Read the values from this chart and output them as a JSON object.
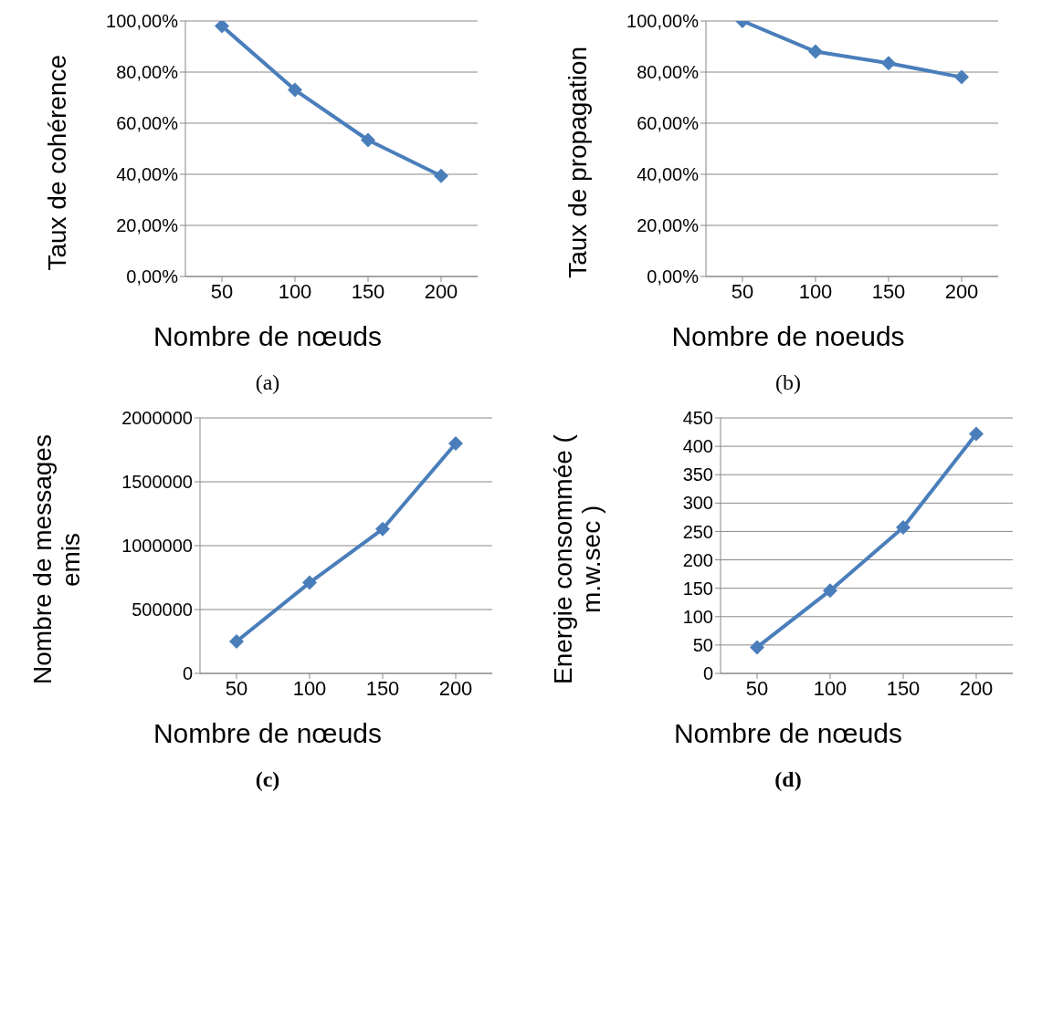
{
  "chart_data": [
    {
      "type": "line",
      "categories": [
        "50",
        "100",
        "150",
        "200"
      ],
      "series": [
        {
          "color": "#4a7ebb",
          "values": [
            98,
            73,
            53.4,
            39.4
          ]
        }
      ],
      "ylim": [
        0,
        100
      ],
      "yticks": [
        {
          "value": 0,
          "label": "0,00%"
        },
        {
          "value": 20,
          "label": "20,00%"
        },
        {
          "value": 40,
          "label": "40,00%"
        },
        {
          "value": 60,
          "label": "60,00%"
        },
        {
          "value": 80,
          "label": "80,00%"
        },
        {
          "value": 100,
          "label": "100,00%"
        }
      ],
      "xlabel": "Nombre de nœuds",
      "ylabel": "Taux de cohérence",
      "grid": "y",
      "marker": "diamond",
      "annotations": [
        "(a)"
      ]
    },
    {
      "type": "line",
      "categories": [
        "50",
        "100",
        "150",
        "200"
      ],
      "series": [
        {
          "color": "#4a7ebb",
          "values": [
            100,
            88,
            83.5,
            78
          ]
        }
      ],
      "ylim": [
        0,
        100
      ],
      "yticks": [
        {
          "value": 0,
          "label": "0,00%"
        },
        {
          "value": 20,
          "label": "20,00%"
        },
        {
          "value": 40,
          "label": "40,00%"
        },
        {
          "value": 60,
          "label": "60,00%"
        },
        {
          "value": 80,
          "label": "80,00%"
        },
        {
          "value": 100,
          "label": "100,00%"
        }
      ],
      "xlabel": "Nombre de noeuds",
      "ylabel": "Taux de propagation",
      "grid": "y",
      "marker": "diamond",
      "annotations": [
        "(b)"
      ]
    },
    {
      "type": "line",
      "categories": [
        "50",
        "100",
        "150",
        "200"
      ],
      "series": [
        {
          "color": "#4a7ebb",
          "values": [
            250000,
            710000,
            1130000,
            1800000
          ]
        }
      ],
      "ylim": [
        0,
        2000000
      ],
      "yticks": [
        0,
        500000,
        1000000,
        1500000,
        2000000
      ],
      "xlabel": "Nombre de nœuds",
      "ylabel": "Nombre de messages emis",
      "grid": "y",
      "marker": "diamond",
      "annotations": [
        "(c)"
      ]
    },
    {
      "type": "line",
      "categories": [
        "50",
        "100",
        "150",
        "200"
      ],
      "series": [
        {
          "color": "#4a7ebb",
          "values": [
            46,
            146,
            257,
            422
          ]
        }
      ],
      "ylim": [
        0,
        450
      ],
      "yticks": [
        0,
        50,
        100,
        150,
        200,
        250,
        300,
        350,
        400,
        450
      ],
      "xlabel": "Nombre de nœuds",
      "ylabel": "Energie consommée ( m.w.sec )",
      "grid": "y",
      "marker": "diamond",
      "annotations": [
        "(d)"
      ]
    }
  ]
}
